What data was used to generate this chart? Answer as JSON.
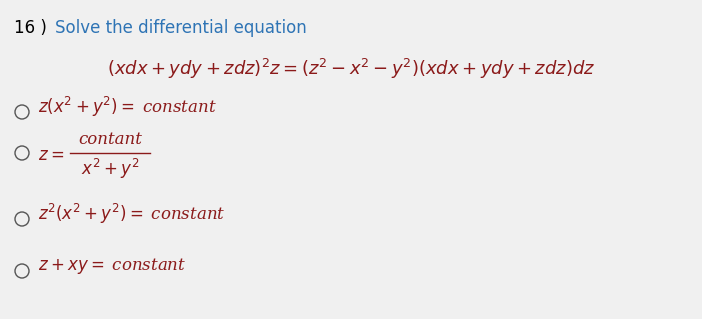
{
  "title_number": "16 )",
  "title_text": "Solve the differential equation",
  "title_number_color": "#000000",
  "title_text_color": "#2e74b5",
  "equation_latex": "$(xdx + ydy + zdz)^2z = (z^2 - x^2 - y^2)(xdx + ydy + zdz)dz$",
  "equation_color": "#8b1a1a",
  "option_color": "#8b1a1a",
  "background_color": "#f0f0f0",
  "circle_color": "#555555",
  "title_fontsize": 12,
  "eq_fontsize": 13,
  "opt_fontsize": 12,
  "opt1_latex": "$z(x^2 + y^2) = \\;$constant",
  "opt2z_latex": "$z = $",
  "opt2_num": "contant",
  "opt2_den_latex": "$x^2 + y^2$",
  "opt3_latex": "$z^2(x^2 + y^2) = \\;$constant",
  "opt4_latex": "$z + xy = \\;$constant"
}
